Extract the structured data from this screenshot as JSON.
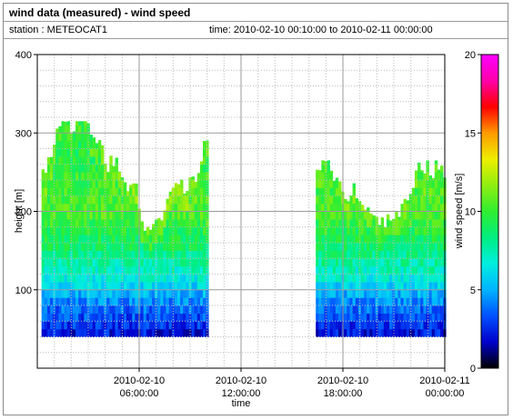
{
  "header": {
    "title": "wind data (measured) - wind speed",
    "station": "station : METEOCAT1",
    "time_range": "time: 2010-02-10 00:10:00 to 2010-02-11 00:00:00"
  },
  "chart_data": {
    "type": "heatmap",
    "title": "wind data (measured) - wind speed",
    "xlabel": "time",
    "ylabel": "height [m]",
    "colorbar_label": "wind speed [m/s]",
    "x_ticks": [
      {
        "line1": "2010-02-10",
        "line2": "06:00:00",
        "hours": 6
      },
      {
        "line1": "2010-02-10",
        "line2": "12:00:00",
        "hours": 12
      },
      {
        "line1": "2010-02-10",
        "line2": "18:00:00",
        "hours": 18
      },
      {
        "line1": "2010-02-11",
        "line2": "00:00:00",
        "hours": 24
      }
    ],
    "xlim_hours": [
      0,
      24
    ],
    "ylim": [
      0,
      400
    ],
    "y_ticks": [
      100,
      200,
      300,
      400
    ],
    "y_minor_step": 20,
    "grid": true,
    "colorbar_range": [
      0,
      20
    ],
    "colorbar_ticks": [
      0,
      5,
      10,
      15,
      20
    ],
    "colormap": [
      "#000000",
      "#0000cc",
      "#0050ff",
      "#00b4ff",
      "#00eee0",
      "#00ee80",
      "#30ee30",
      "#90ee10",
      "#eeee00",
      "#ff9a00",
      "#ff0000",
      "#ff00aa",
      "#ff00ff"
    ],
    "data_gaps_hours": [
      [
        10.0,
        16.4
      ]
    ],
    "blocks": [
      {
        "start_hour": 0.25,
        "end_hour": 10.0,
        "min_height": 40,
        "max_height_range": [
          180,
          315
        ]
      },
      {
        "start_hour": 16.4,
        "end_hour": 24.0,
        "min_height": 40,
        "max_height_range": [
          190,
          265
        ]
      }
    ],
    "speed_profile_mps": [
      {
        "height": 40,
        "speed": 2.0
      },
      {
        "height": 80,
        "speed": 4.0
      },
      {
        "height": 120,
        "speed": 7.0
      },
      {
        "height": 160,
        "speed": 9.0
      },
      {
        "height": 200,
        "speed": 10.5
      },
      {
        "height": 240,
        "speed": 10.0
      },
      {
        "height": 300,
        "speed": 9.0
      }
    ]
  }
}
